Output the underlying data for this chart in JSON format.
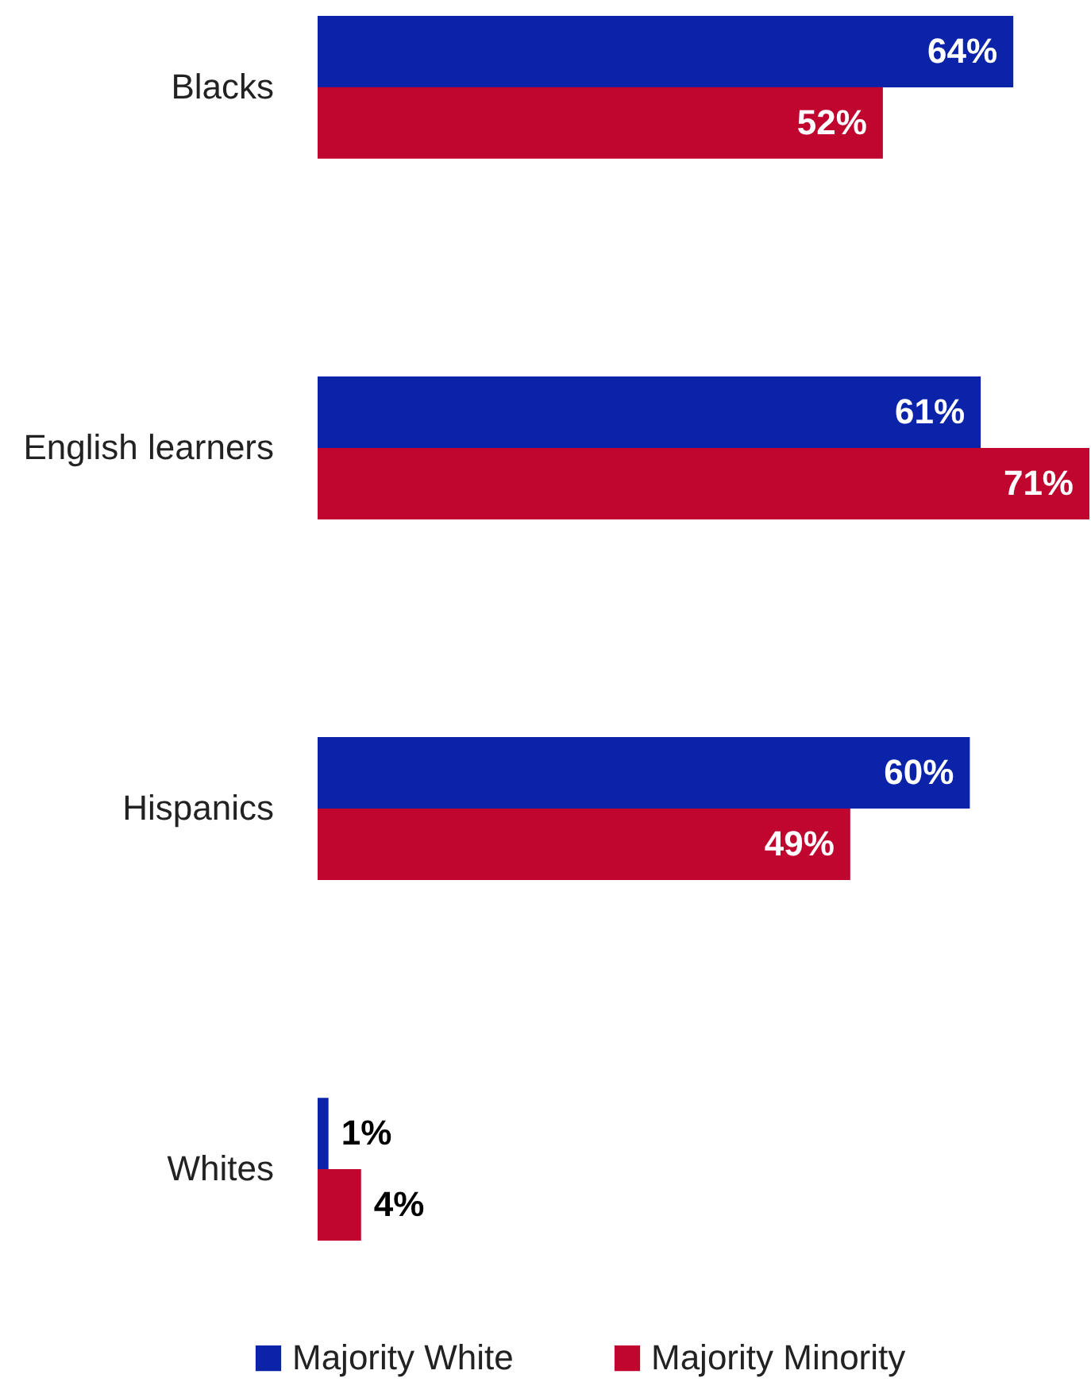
{
  "chart_data": {
    "type": "bar",
    "orientation": "horizontal",
    "categories": [
      "Blacks",
      "English learners",
      "Hispanics",
      "Whites"
    ],
    "series": [
      {
        "name": "Majority White",
        "color": "#0a23a8",
        "values": [
          64,
          61,
          60,
          1
        ],
        "value_labels": [
          "64%",
          "61%",
          "60%",
          "1%"
        ]
      },
      {
        "name": "Majority Minority",
        "color": "#c0062e",
        "values": [
          52,
          71,
          49,
          4
        ],
        "value_labels": [
          "52%",
          "71%",
          "49%",
          "4%"
        ]
      }
    ],
    "legend": "bottom"
  }
}
